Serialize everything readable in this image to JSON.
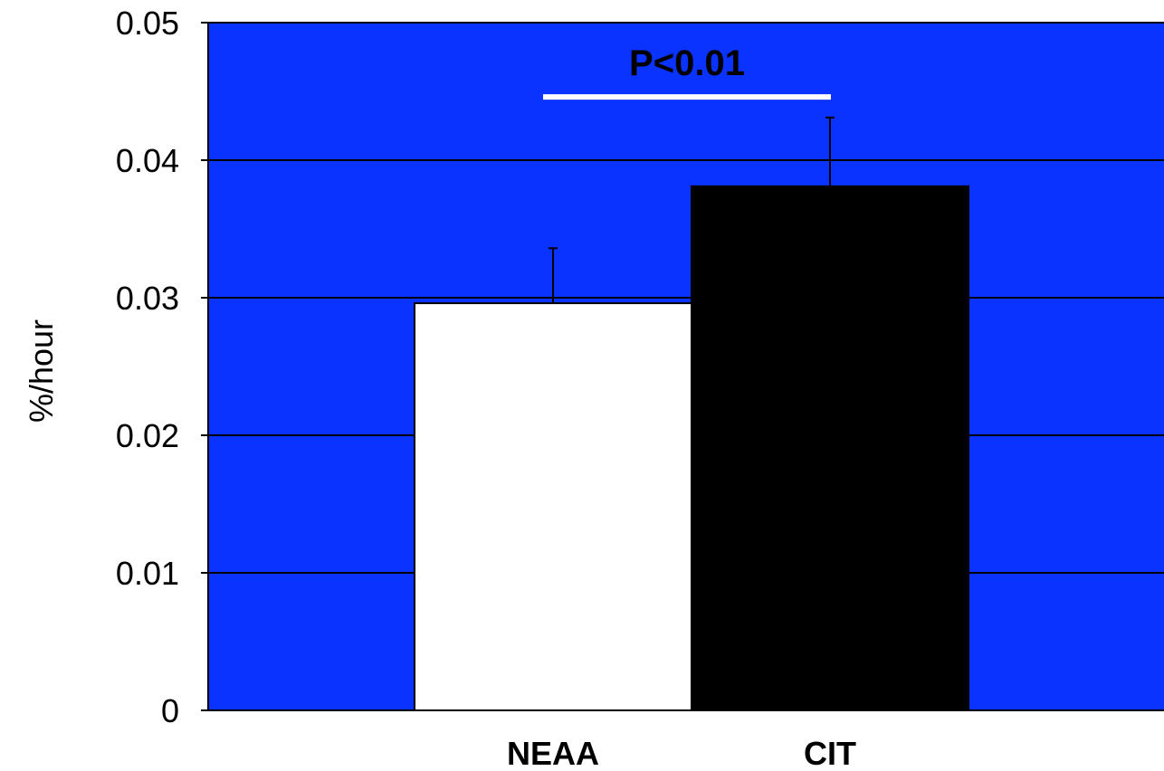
{
  "colors": {
    "plot_background": "#0b33ff",
    "gridline": "#000000",
    "axis": "#000000",
    "significance_line": "#ffffff"
  },
  "chart_data": {
    "type": "bar",
    "title": "",
    "xlabel": "",
    "ylabel": "%/hour",
    "ylim": [
      0,
      0.05
    ],
    "yticks": [
      "0",
      "0.01",
      "0.02",
      "0.03",
      "0.04",
      "0.05"
    ],
    "grid": true,
    "categories": [
      "NEAA",
      "CIT"
    ],
    "values": [
      0.0296,
      0.0381
    ],
    "errors": [
      0.004,
      0.005
    ],
    "bar_colors": [
      "#ffffff",
      "#000000"
    ],
    "annotation": {
      "text": "P<0.01",
      "level": 0.0446
    }
  }
}
